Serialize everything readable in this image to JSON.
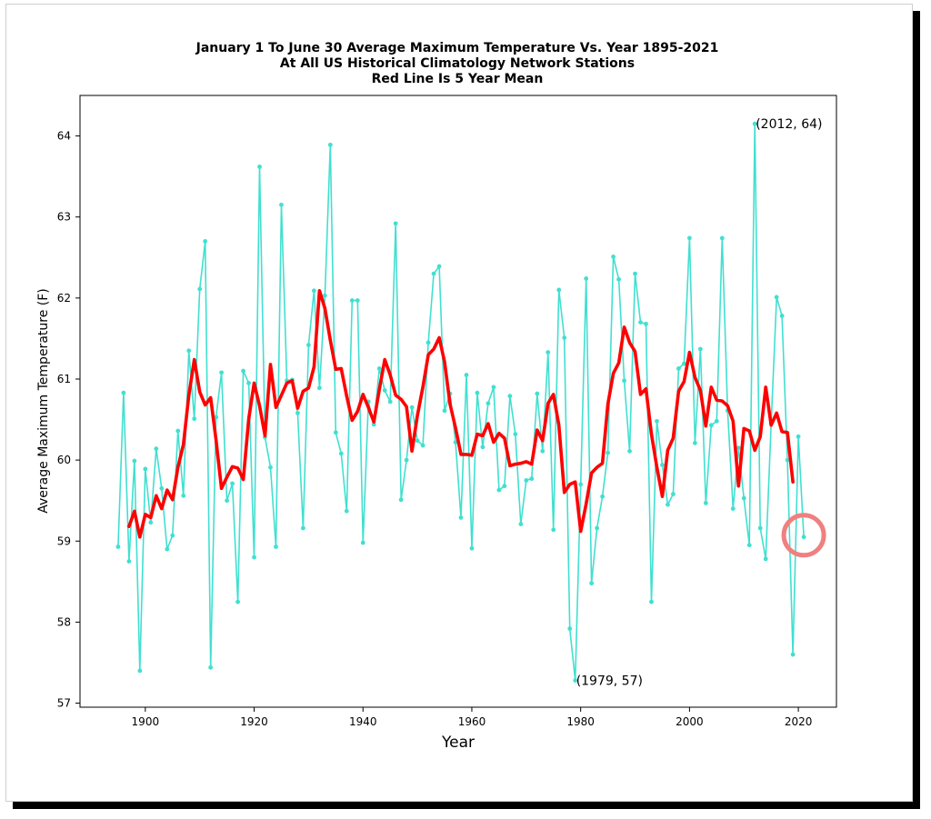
{
  "chart_data": {
    "type": "line",
    "title": "January 1 To June 30 Average Maximum Temperature Vs. Year 1895-2021",
    "subtitle": "At All US Historical Climatology Network Stations",
    "subtitle2": "Red Line Is 5 Year Mean",
    "xlabel": "Year",
    "ylabel": "Average Maximum Temperature (F)",
    "xlim": [
      1888,
      2027
    ],
    "ylim": [
      56.95,
      64.5
    ],
    "xticks": [
      1900,
      1920,
      1940,
      1960,
      1980,
      2000,
      2020
    ],
    "yticks": [
      57,
      58,
      59,
      60,
      61,
      62,
      63,
      64
    ],
    "grid": false,
    "colors": {
      "annual": "#40e0d0",
      "mean": "#ff0000",
      "highlight": "#f08080"
    },
    "annotations": [
      {
        "text": "(2012, 64)",
        "x": 2012,
        "y": 64.15
      },
      {
        "text": "(1979, 57)",
        "x": 1979,
        "y": 57.28
      }
    ],
    "highlight_point": {
      "x": 2021,
      "y": 59.05
    },
    "series": [
      {
        "x": [
          1895,
          1896,
          1897,
          1898,
          1899,
          1900,
          1901,
          1902,
          1903,
          1904,
          1905,
          1906,
          1907,
          1908,
          1909,
          1910,
          1911,
          1912,
          1913,
          1914,
          1915,
          1916,
          1917,
          1918,
          1919,
          1920,
          1921,
          1922,
          1923,
          1924,
          1925,
          1926,
          1927,
          1928,
          1929,
          1930,
          1931,
          1932,
          1933,
          1934,
          1935,
          1936,
          1937,
          1938,
          1939,
          1940,
          1941,
          1942,
          1943,
          1944,
          1945,
          1946,
          1947,
          1948,
          1949,
          1950,
          1951,
          1952,
          1953,
          1954,
          1955,
          1956,
          1957,
          1958,
          1959,
          1960,
          1961,
          1962,
          1963,
          1964,
          1965,
          1966,
          1967,
          1968,
          1969,
          1970,
          1971,
          1972,
          1973,
          1974,
          1975,
          1976,
          1977,
          1978,
          1979,
          1980,
          1981,
          1982,
          1983,
          1984,
          1985,
          1986,
          1987,
          1988,
          1989,
          1990,
          1991,
          1992,
          1993,
          1994,
          1995,
          1996,
          1997,
          1998,
          1999,
          2000,
          2001,
          2002,
          2003,
          2004,
          2005,
          2006,
          2007,
          2008,
          2009,
          2010,
          2011,
          2012,
          2013,
          2014,
          2015,
          2016,
          2017,
          2018,
          2019,
          2020,
          2021
        ],
        "values": [
          58.93,
          60.83,
          58.75,
          59.99,
          57.4,
          59.89,
          59.23,
          60.14,
          59.65,
          58.9,
          59.07,
          60.36,
          59.56,
          61.35,
          60.51,
          62.11,
          62.7,
          57.44,
          60.53,
          61.08,
          59.5,
          59.71,
          58.25,
          61.1,
          60.95,
          58.8,
          63.62,
          60.28,
          59.91,
          58.93,
          63.15,
          60.98,
          60.99,
          60.58,
          59.16,
          61.42,
          62.09,
          60.89,
          62.03,
          63.89,
          60.34,
          60.08,
          59.37,
          61.97,
          61.97,
          58.98,
          60.72,
          60.44,
          61.13,
          60.86,
          60.72,
          62.92,
          59.51,
          60.0,
          60.65,
          60.24,
          60.18,
          61.45,
          62.3,
          62.39,
          60.61,
          60.82,
          60.22,
          59.29,
          61.05,
          58.91,
          60.83,
          60.16,
          60.7,
          60.9,
          59.63,
          59.68,
          60.79,
          60.32,
          59.21,
          59.75,
          59.77,
          60.82,
          60.11,
          61.33,
          59.14,
          62.1,
          61.51,
          57.92,
          57.28,
          59.7,
          62.24,
          58.48,
          59.16,
          59.55,
          60.09,
          62.51,
          62.23,
          60.98,
          60.11,
          62.3,
          61.7,
          61.68,
          58.25,
          60.48,
          59.94,
          59.45,
          59.58,
          61.13,
          61.19,
          62.74,
          60.21,
          61.37,
          59.47,
          60.43,
          60.48,
          62.74,
          60.61,
          59.4,
          60.15,
          59.53,
          58.95,
          64.15,
          59.16,
          58.78,
          60.45,
          62.01,
          61.78,
          60.0,
          57.6,
          60.29,
          59.05
        ]
      },
      {
        "x": [
          1897,
          1898,
          1899,
          1900,
          1901,
          1902,
          1903,
          1904,
          1905,
          1906,
          1907,
          1908,
          1909,
          1910,
          1911,
          1912,
          1913,
          1914,
          1915,
          1916,
          1917,
          1918,
          1919,
          1920,
          1921,
          1922,
          1923,
          1924,
          1925,
          1926,
          1927,
          1928,
          1929,
          1930,
          1931,
          1932,
          1933,
          1934,
          1935,
          1936,
          1937,
          1938,
          1939,
          1940,
          1941,
          1942,
          1943,
          1944,
          1945,
          1946,
          1947,
          1948,
          1949,
          1950,
          1951,
          1952,
          1953,
          1954,
          1955,
          1956,
          1957,
          1958,
          1959,
          1960,
          1961,
          1962,
          1963,
          1964,
          1965,
          1966,
          1967,
          1968,
          1969,
          1970,
          1971,
          1972,
          1973,
          1974,
          1975,
          1976,
          1977,
          1978,
          1979,
          1980,
          1981,
          1982,
          1983,
          1984,
          1985,
          1986,
          1987,
          1988,
          1989,
          1990,
          1991,
          1992,
          1993,
          1994,
          1995,
          1996,
          1997,
          1998,
          1999,
          2000,
          2001,
          2002,
          2003,
          2004,
          2005,
          2006,
          2007,
          2008,
          2009,
          2010,
          2011,
          2012,
          2013,
          2014,
          2015,
          2016,
          2017,
          2018,
          2019
        ],
        "values": [
          59.18,
          59.37,
          59.05,
          59.33,
          59.29,
          59.56,
          59.4,
          59.63,
          59.51,
          59.91,
          60.19,
          60.8,
          61.24,
          60.84,
          60.68,
          60.77,
          60.25,
          59.65,
          59.79,
          59.92,
          59.9,
          59.76,
          60.51,
          60.95,
          60.67,
          60.3,
          61.18,
          60.65,
          60.8,
          60.95,
          60.98,
          60.64,
          60.85,
          60.89,
          61.15,
          62.09,
          61.87,
          61.48,
          61.12,
          61.13,
          60.79,
          60.49,
          60.6,
          60.81,
          60.65,
          60.47,
          60.87,
          61.24,
          61.05,
          60.8,
          60.75,
          60.66,
          60.11,
          60.55,
          60.9,
          61.3,
          61.37,
          61.51,
          61.21,
          60.69,
          60.4,
          60.07,
          60.07,
          60.06,
          60.32,
          60.3,
          60.45,
          60.22,
          60.33,
          60.27,
          59.93,
          59.95,
          59.96,
          59.98,
          59.95,
          60.37,
          60.24,
          60.7,
          60.81,
          60.43,
          59.6,
          59.7,
          59.73,
          59.12,
          59.46,
          59.84,
          59.91,
          59.96,
          60.69,
          61.07,
          61.2,
          61.64,
          61.45,
          61.34,
          60.81,
          60.88,
          60.32,
          59.91,
          59.55,
          60.12,
          60.27,
          60.85,
          60.97,
          61.33,
          61.02,
          60.86,
          60.42,
          60.9,
          60.74,
          60.73,
          60.67,
          60.48,
          59.68,
          60.39,
          60.36,
          60.12,
          60.29,
          60.9,
          60.43,
          60.58,
          60.35,
          60.34,
          59.73
        ]
      }
    ]
  }
}
